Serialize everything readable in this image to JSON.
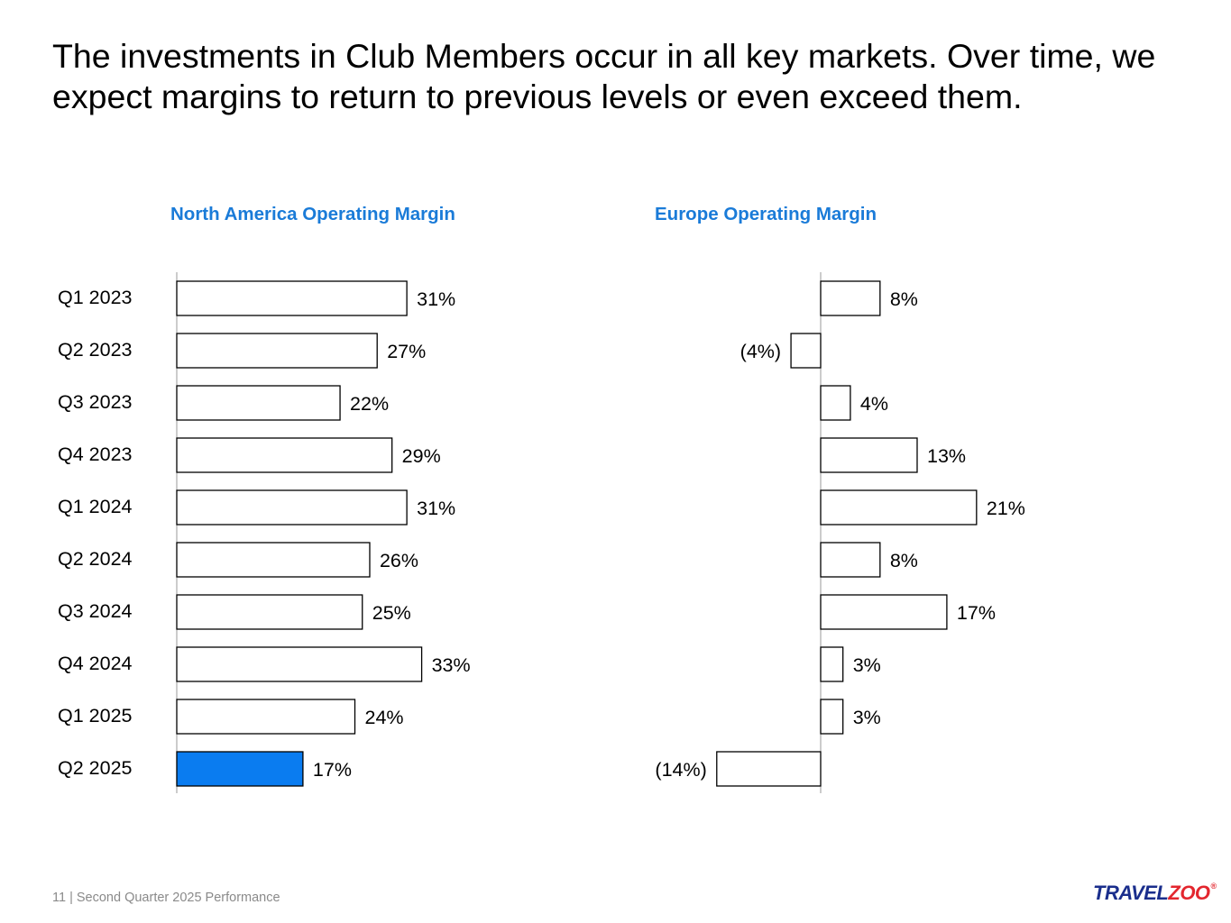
{
  "slide": {
    "headline": "The investments in Club Members occur in all key markets. Over time, we expect margins to return to previous levels or even exceed them.",
    "footer": "11 | Second Quarter 2025 Performance",
    "logo_part1": "TRAVEL",
    "logo_part2": "ZOO",
    "logo_mark": "®"
  },
  "chart_data": [
    {
      "type": "bar",
      "orientation": "horizontal",
      "title": "North America Operating Margin",
      "categories": [
        "Q1 2023",
        "Q2 2023",
        "Q3 2023",
        "Q4 2023",
        "Q1 2024",
        "Q2 2024",
        "Q3 2024",
        "Q4 2024",
        "Q1 2025",
        "Q2 2025"
      ],
      "values": [
        31,
        27,
        22,
        29,
        31,
        26,
        25,
        33,
        24,
        17
      ],
      "value_labels": [
        "31%",
        "27%",
        "22%",
        "29%",
        "31%",
        "26%",
        "25%",
        "33%",
        "24%",
        "17%"
      ],
      "unit": "%",
      "highlight_index": 9,
      "colors": {
        "bar_fill": "#ffffff",
        "highlight_fill": "#0a7cf0",
        "bar_stroke": "#000000",
        "axis": "#999999",
        "title": "#1a7bd8"
      }
    },
    {
      "type": "bar",
      "orientation": "horizontal",
      "title": "Europe Operating Margin",
      "categories": [
        "Q1 2023",
        "Q2 2023",
        "Q3 2023",
        "Q4 2023",
        "Q1 2024",
        "Q2 2024",
        "Q3 2024",
        "Q4 2024",
        "Q1 2025",
        "Q2 2025"
      ],
      "values": [
        8,
        -4,
        4,
        13,
        21,
        8,
        17,
        3,
        3,
        -14
      ],
      "value_labels": [
        "8%",
        "(4%)",
        "4%",
        "13%",
        "21%",
        "8%",
        "17%",
        "3%",
        "3%",
        "(14%)"
      ],
      "unit": "%",
      "colors": {
        "bar_fill": "#ffffff",
        "bar_stroke": "#000000",
        "axis": "#999999",
        "title": "#1a7bd8"
      }
    }
  ]
}
